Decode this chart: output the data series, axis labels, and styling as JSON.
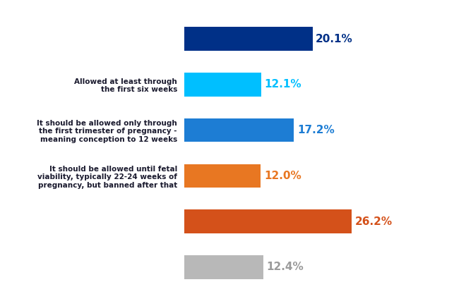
{
  "categories": [
    "",
    "Allowed at least through\nthe first six weeks",
    "It should be allowed only through\nthe first trimester of pregnancy -\nmeaning conception to 12 weeks",
    "It should be allowed until fetal\nviability, typically 22-24 weeks of\npregnancy, but banned after that",
    "",
    ""
  ],
  "values": [
    20.1,
    12.1,
    17.2,
    12.0,
    26.2,
    12.4
  ],
  "bar_colors": [
    "#003087",
    "#00BFFF",
    "#1D7DD4",
    "#E87722",
    "#D4511A",
    "#B8B8B8"
  ],
  "value_colors": [
    "#003087",
    "#00BFFF",
    "#1D7DD4",
    "#E87722",
    "#D4511A",
    "#9A9A9A"
  ],
  "label_color": "#1A1A2E",
  "background_color": "#FFFFFF",
  "bar_height": 0.52,
  "xlim_max": 35,
  "figsize": [
    6.6,
    4.34
  ],
  "dpi": 100,
  "value_fontsize": 11,
  "label_fontsize": 7.5
}
